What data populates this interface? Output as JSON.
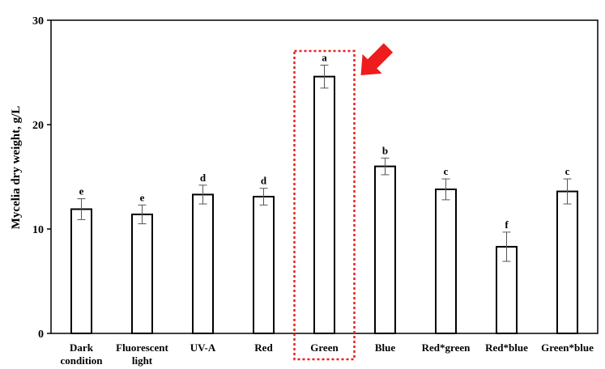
{
  "chart_data": {
    "type": "bar",
    "title": "",
    "xlabel": "",
    "ylabel": "Mycelia dry weight, g/L",
    "ylim": [
      0,
      30
    ],
    "yticks": [
      0,
      10,
      20,
      30
    ],
    "grid": false,
    "legend": "none",
    "categories": [
      [
        "Dark",
        "condition"
      ],
      [
        "Fluorescent",
        "light"
      ],
      [
        "UV-A"
      ],
      [
        "Red"
      ],
      [
        "Green"
      ],
      [
        "Blue"
      ],
      [
        "Red*green"
      ],
      [
        "Red*blue"
      ],
      [
        "Green*blue"
      ]
    ],
    "values": [
      11.9,
      11.4,
      13.3,
      13.1,
      24.6,
      16.0,
      13.8,
      8.3,
      13.6
    ],
    "errors": [
      1.0,
      0.9,
      0.9,
      0.8,
      1.1,
      0.8,
      1.0,
      1.4,
      1.2
    ],
    "significance": [
      "e",
      "e",
      "d",
      "d",
      "a",
      "b",
      "c",
      "f",
      "c"
    ],
    "highlight": {
      "category_index": 4,
      "box_style": "dotted",
      "box_color": "#e8211d",
      "arrow_color": "#ee1c1c"
    },
    "colors": {
      "bar_fill": "#ffffff",
      "bar_stroke": "#000000",
      "axis": "#000000",
      "error_bar": "#555555"
    }
  }
}
